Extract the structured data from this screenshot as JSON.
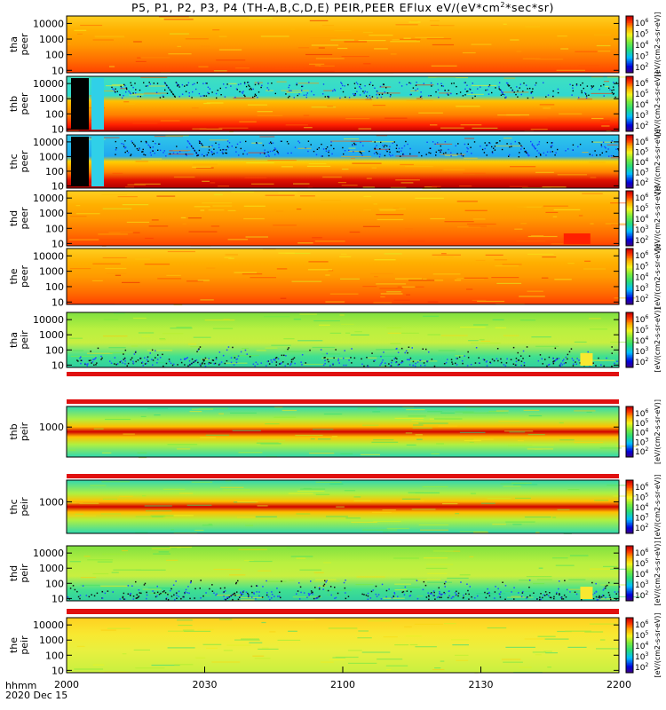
{
  "chart_data": {
    "type": "heatmap",
    "title": {
      "prefix": "P5, P1, P2, P3, P4 (TH-A,B,C,D,E) PEIR,PEER EFlux eV/(eV*cm",
      "sup1": "2",
      "suffix": "*sec*sr)"
    },
    "x_ticks": [
      "2000",
      "2030",
      "2100",
      "2130",
      "2200"
    ],
    "x_tick_fractions": [
      0.0,
      0.25,
      0.5,
      0.75,
      1.0
    ],
    "x_footer": {
      "line1": "hhmm",
      "line2": "2020 Dec 15"
    },
    "colorbar_label": "[eV/(cm2-s-sr-eV)]",
    "colorbar_ticks": [
      {
        "base": "10",
        "exp": "6"
      },
      {
        "base": "10",
        "exp": "5"
      },
      {
        "base": "10",
        "exp": "4"
      },
      {
        "base": "10",
        "exp": "3"
      },
      {
        "base": "10",
        "exp": "2"
      }
    ],
    "panels": [
      {
        "probe": "tha",
        "species": "peer",
        "y_ticks": [
          "10000",
          "1000",
          "100",
          "10"
        ],
        "ylim": [
          7,
          30000
        ],
        "pattern": "peer_hot"
      },
      {
        "probe": "thb",
        "species": "peer",
        "y_ticks": [
          "10000",
          "1000",
          "100",
          "10"
        ],
        "ylim": [
          7,
          30000
        ],
        "pattern": "peer_bands"
      },
      {
        "probe": "thc",
        "species": "peer",
        "y_ticks": [
          "10000",
          "1000",
          "100",
          "10"
        ],
        "ylim": [
          7,
          30000
        ],
        "pattern": "peer_bands_blue"
      },
      {
        "probe": "thd",
        "species": "peer",
        "y_ticks": [
          "10000",
          "1000",
          "100",
          "10"
        ],
        "ylim": [
          7,
          30000
        ],
        "pattern": "peer_hot_end"
      },
      {
        "probe": "the",
        "species": "peer",
        "y_ticks": [
          "10000",
          "1000",
          "100",
          "10"
        ],
        "ylim": [
          7,
          30000
        ],
        "pattern": "peer_hot"
      },
      {
        "probe": "tha",
        "species": "peir",
        "y_ticks": [
          "10000",
          "1000",
          "100",
          "10"
        ],
        "ylim": [
          7,
          30000
        ],
        "pattern": "peir_green"
      },
      {
        "probe": "thb",
        "species": "peir",
        "y_ticks": [
          "1000"
        ],
        "ylim": [
          7,
          30000
        ],
        "pattern": "peir_band"
      },
      {
        "probe": "thc",
        "species": "peir",
        "y_ticks": [
          "1000"
        ],
        "ylim": [
          7,
          30000
        ],
        "pattern": "peir_band"
      },
      {
        "probe": "thd",
        "species": "peir",
        "y_ticks": [
          "10000",
          "1000",
          "100",
          "10"
        ],
        "ylim": [
          7,
          30000
        ],
        "pattern": "peir_green"
      },
      {
        "probe": "the",
        "species": "peir",
        "y_ticks": [
          "10000",
          "1000",
          "100",
          "10"
        ],
        "ylim": [
          7,
          30000
        ],
        "pattern": "peir_yellow"
      }
    ]
  }
}
